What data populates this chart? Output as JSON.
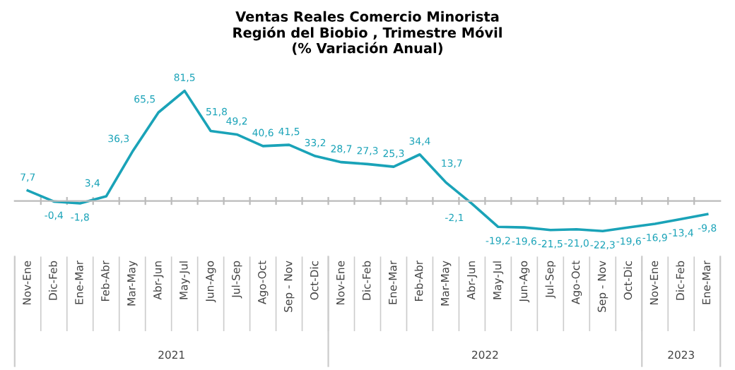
{
  "chart_data": {
    "type": "line",
    "title": "Ventas Reales Comercio Minorista\nRegión del Biobio , Trimestre Móvil\n(% Variación Anual)",
    "categories": [
      "Nov-Ene",
      "Dic-Feb",
      "Ene-Mar",
      "Feb-Abr",
      "Mar-May",
      "Abr-Jun",
      "May-Jul",
      "Jun-Ago",
      "Jul-Sep",
      "Ago-Oct",
      "Sep - Nov",
      "Oct-Dic",
      "Nov-Ene",
      "Dic-Feb",
      "Ene-Mar",
      "Feb-Abr",
      "Mar-May",
      "Abr-Jun",
      "May-Jul",
      "Jun-Ago",
      "Jul-Sep",
      "Ago-Oct",
      "Sep - Nov",
      "Oct-Dic",
      "Nov-Ene",
      "Dic-Feb",
      "Ene-Mar"
    ],
    "series": [
      {
        "color": "#1aa3b8",
        "values": [
          7.7,
          -0.4,
          -1.8,
          3.4,
          36.3,
          65.5,
          81.5,
          51.8,
          49.2,
          40.6,
          41.5,
          33.2,
          28.7,
          27.3,
          25.3,
          34.4,
          13.7,
          -2.1,
          -19.2,
          -19.6,
          -21.5,
          -21.0,
          -22.3,
          -19.6,
          -16.9,
          -13.4,
          -9.8
        ],
        "value_labels": [
          "7,7",
          "-0,4",
          "-1,8",
          "3,4",
          "36,3",
          "65,5",
          "81,5",
          "51,8",
          "49,2",
          "40,6",
          "41,5",
          "33,2",
          "28,7",
          "27,3",
          "25,3",
          "34,4",
          "13,7",
          "-2,1",
          "-19,2",
          "-19,6",
          "-21,5",
          "-21,0",
          "-22,3",
          "-19,6",
          "-16,9",
          "-13,4",
          "-9,8"
        ]
      }
    ],
    "annotations": [
      "2021",
      "2022",
      "2023"
    ],
    "grid": false,
    "legend": false,
    "marker": "none",
    "line_style": "solid"
  }
}
